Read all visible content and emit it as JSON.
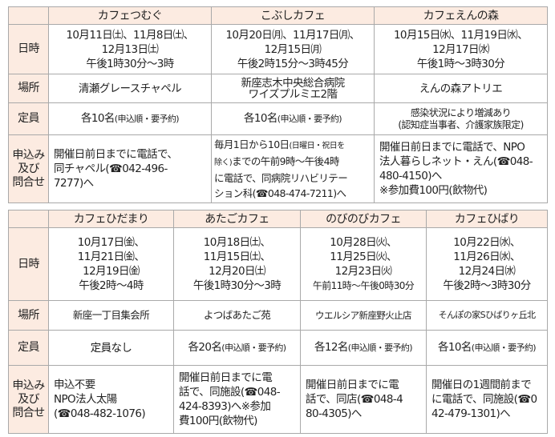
{
  "row_labels": {
    "datetime": "日時",
    "place": "場所",
    "capacity": "定員",
    "apply": [
      "申込み",
      "及び",
      "問合せ"
    ]
  },
  "table1": {
    "cafes": [
      {
        "name": "カフェつむぐ",
        "datetime": [
          "10月11日㈯、11月8日㈯、",
          "12月13日㈯",
          "午後1時30分～3時"
        ],
        "place": [
          "清瀬グレースチャペル"
        ],
        "capacity": [
          "各10名",
          "(申込順・要予約)"
        ],
        "apply": [
          "開催日前日までに電話で、",
          "同チャペル(☎042-496-",
          "7277)へ"
        ]
      },
      {
        "name": "こぶしカフェ",
        "datetime": [
          "10月20日㈪、11月17日㈪、",
          "12月15日㈪",
          "午後2時15分～3時45分"
        ],
        "place": [
          "新座志木中央総合病院",
          "ワイズプルミエ2階"
        ],
        "capacity": [
          "各10名",
          "(申込順・要予約)"
        ],
        "apply": [
          "毎月1日から10日",
          "(日曜日・祝日を",
          "除く)",
          "までの午前9時～午後4時",
          "に電話で、同病院リハビリテー",
          "ション科(☎048-474-7211)へ"
        ]
      },
      {
        "name": "カフェえんの森",
        "datetime": [
          "10月15日㈬、11月19日㈬、",
          "12月17日㈬",
          "午後1時～3時30分"
        ],
        "place": [
          "えんの森アトリエ"
        ],
        "capacity": [
          "感染状況により増減あり",
          "(認知症当事者、介護家族限定)"
        ],
        "apply": [
          "開催日前日までに電話で、NPO",
          "法人暮らしネット・えん(☎048-",
          "480-4150)へ",
          "※参加費100円(飲物代)"
        ]
      }
    ]
  },
  "table2": {
    "cafes": [
      {
        "name": "カフェひだまり",
        "datetime": [
          "10月17日㈮、",
          "11月21日㈮、",
          "12月19日㈮",
          "午後2時～4時"
        ],
        "place": "新座一丁目集会所",
        "capacity": [
          "定員なし",
          ""
        ],
        "apply": [
          "申込不要",
          "NPO法人太陽",
          "(☎048-482-1076)"
        ]
      },
      {
        "name": "あたごカフェ",
        "datetime": [
          "10月18日㈯、",
          "11月15日㈯、",
          "12月20日㈯",
          "午後1時30分～3時"
        ],
        "place": "よつばあたご苑",
        "capacity": [
          "各20名",
          "(申込順・要予約)"
        ],
        "apply": [
          "開催日前日までに電",
          "話で、同施設(☎048-",
          "424-8393)へ※参加",
          "費100円(飲物代)"
        ]
      },
      {
        "name": "のびのびカフェ",
        "datetime": [
          "10月28日㈫、",
          "11月25日㈫、",
          "12月23日㈫",
          "午前11時～午後0時30分"
        ],
        "place": "ウエルシア新座野火止店",
        "capacity": [
          "各12名",
          "(申込順・要予約)"
        ],
        "apply": [
          "開催日前日までに電",
          "話で、同店(☎048-4",
          "80-4305)へ"
        ]
      },
      {
        "name": "カフェひばり",
        "datetime": [
          "10月22日㈬、",
          "11月26日㈬、",
          "12月24日㈬",
          "午後2時～3時30分"
        ],
        "place": "そんぽの家Sひばりヶ丘北",
        "capacity": [
          "各10名",
          "(申込順・要予約)"
        ],
        "apply": [
          "開催日の1週間前まで",
          "に電話で、同施設(☎0",
          "42-479-1301)へ"
        ]
      }
    ]
  },
  "colors": {
    "header_bg": "#fcebe1",
    "border": "#a9a9a9"
  }
}
